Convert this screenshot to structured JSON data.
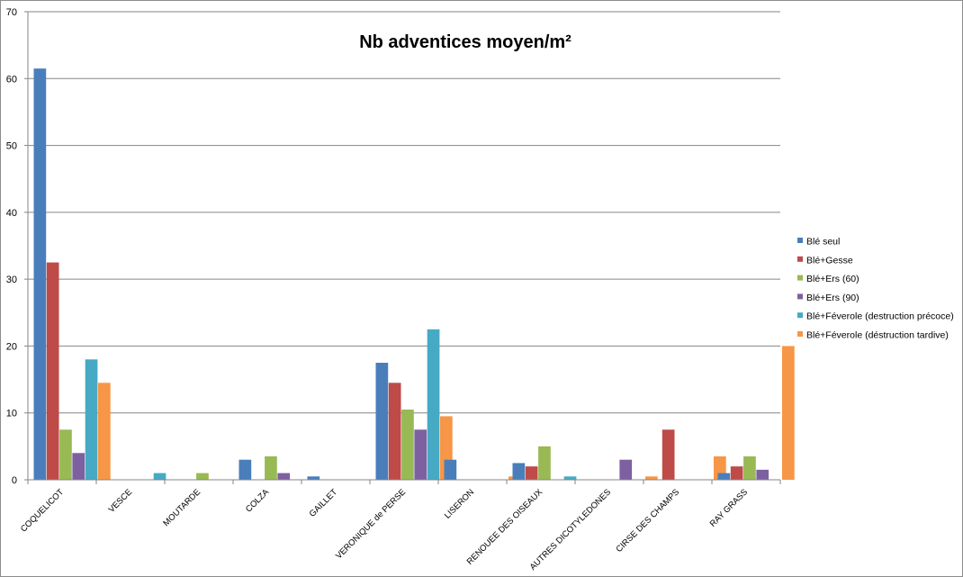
{
  "chart_data": {
    "type": "bar",
    "title": "Nb adventices moyen/m²",
    "xlabel": "",
    "ylabel": "",
    "ylim": [
      0,
      70
    ],
    "yticks": [
      0,
      10,
      20,
      30,
      40,
      50,
      60,
      70
    ],
    "grid": true,
    "legend_position": "right",
    "categories": [
      "COQUELICOT",
      "VESCE",
      "MOUTARDE",
      "COLZA",
      "GAILLET",
      "VERONIQUE de PERSE",
      "LISERON",
      "RENOUEE DES OISEAUX",
      "AUTRES DICOTYLEDONES",
      "CIRSE DES CHAMPS",
      "RAY GRASS"
    ],
    "series": [
      {
        "name": "Blé seul",
        "color": "#4a7ebb",
        "values": [
          61.5,
          0,
          0,
          3,
          0.5,
          17.5,
          3,
          2.5,
          0,
          0,
          1
        ]
      },
      {
        "name": "Blé+Gesse",
        "color": "#be4b48",
        "values": [
          32.5,
          0,
          0,
          0,
          0,
          14.5,
          0,
          2,
          0,
          7.5,
          2
        ]
      },
      {
        "name": "Blé+Ers (60)",
        "color": "#98b954",
        "values": [
          7.5,
          0,
          1,
          3.5,
          0,
          10.5,
          0,
          5,
          0,
          0,
          3.5
        ]
      },
      {
        "name": "Blé+Ers (90)",
        "color": "#7d60a0",
        "values": [
          4,
          0,
          0,
          1,
          0,
          7.5,
          0,
          0,
          3,
          0,
          1.5
        ]
      },
      {
        "name": "Blé+Féverole (destruction précoce)",
        "color": "#46aac5",
        "values": [
          18,
          1,
          0,
          0,
          0,
          22.5,
          0,
          0.5,
          0,
          0,
          0
        ]
      },
      {
        "name": "Blé+Féverole (déstruction tardive)",
        "color": "#f79646",
        "values": [
          14.5,
          0,
          0,
          0,
          0,
          9.5,
          0.5,
          0,
          0.5,
          3.5,
          20
        ]
      }
    ]
  }
}
